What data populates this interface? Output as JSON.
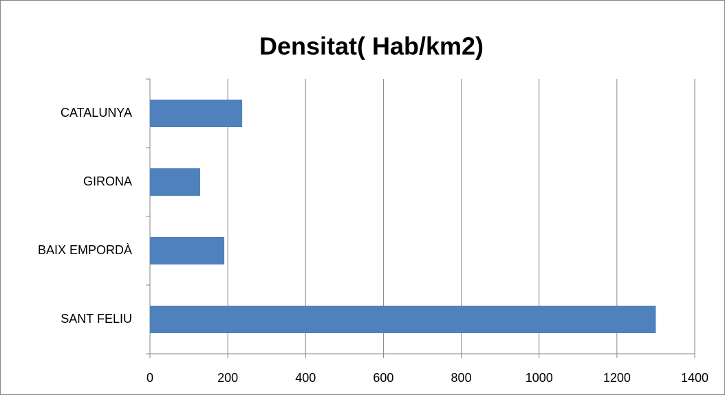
{
  "chart_data": {
    "type": "bar",
    "orientation": "horizontal",
    "title": "Densitat( Hab/km2)",
    "categories": [
      "CATALUNYA",
      "GIRONA",
      "BAIX EMPORDÀ",
      "SANT FELIU"
    ],
    "values": [
      237,
      129,
      191,
      1300
    ],
    "color": "#4f81bd",
    "xlim": [
      0,
      1400
    ],
    "xticks": [
      0,
      200,
      400,
      600,
      800,
      1000,
      1200,
      1400
    ],
    "grid": true
  }
}
